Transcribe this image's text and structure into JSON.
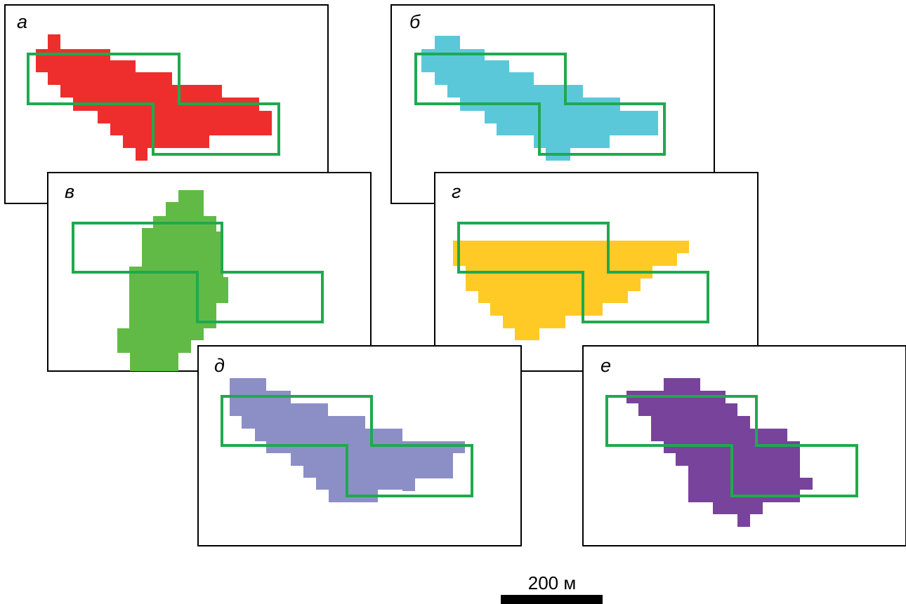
{
  "panels": [
    {
      "label": "а",
      "fill_color": "#EE2E2C"
    },
    {
      "label": "б",
      "fill_color": "#5BC8DA"
    },
    {
      "label": "в",
      "fill_color": "#62BA46"
    },
    {
      "label": "г",
      "fill_color": "#FFCA26"
    },
    {
      "label": "д",
      "fill_color": "#8C8FC6"
    },
    {
      "label": "е",
      "fill_color": "#77439B"
    }
  ],
  "outline_color": "#1FA94F",
  "scale_bar": {
    "label": "200 м"
  }
}
